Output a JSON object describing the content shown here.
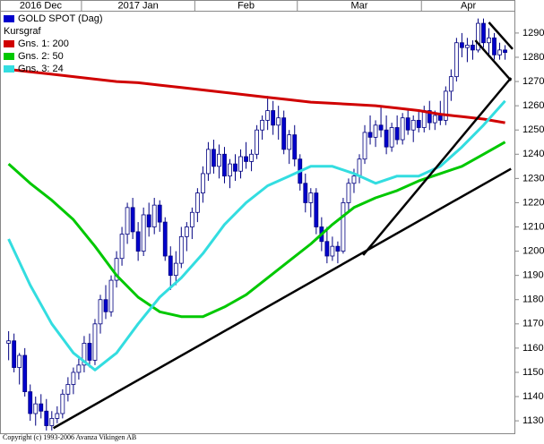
{
  "chart_data": {
    "type": "candlestick",
    "price_name": "GOLD SPOT (Dag)",
    "price_kind": "Kursgraf",
    "footer": "Copyright (c) 1993-2006 Avanza Vikingen AB",
    "up_color": "#ffffff",
    "down_color": "#0000cc",
    "edge_color": "#000080",
    "xlim": [
      -1.6,
      93.9
    ],
    "xticks": [
      {
        "value": 0,
        "label": "2016 Dec"
      },
      {
        "value": 14,
        "label": "2017 Jan"
      },
      {
        "value": 35,
        "label": "Feb"
      },
      {
        "value": 54,
        "label": "Mar"
      },
      {
        "value": 77,
        "label": "Apr"
      }
    ],
    "ylim": [
      1124.5,
      1299.2
    ],
    "yticks": [
      1130,
      1140,
      1150,
      1160,
      1170,
      1180,
      1190,
      1200,
      1210,
      1220,
      1230,
      1240,
      1250,
      1260,
      1270,
      1280,
      1290
    ],
    "candles": [
      [
        1162,
        1167,
        1155,
        1163
      ],
      [
        1163,
        1166,
        1150,
        1152
      ],
      [
        1152,
        1158,
        1145,
        1157
      ],
      [
        1157,
        1160,
        1140,
        1142
      ],
      [
        1142,
        1145,
        1130,
        1133
      ],
      [
        1133,
        1140,
        1128,
        1137
      ],
      [
        1137,
        1141,
        1131,
        1134
      ],
      [
        1134,
        1139,
        1126,
        1128
      ],
      [
        1128,
        1134,
        1126,
        1131
      ],
      [
        1131,
        1136,
        1129,
        1133
      ],
      [
        1133,
        1143,
        1131,
        1141
      ],
      [
        1141,
        1148,
        1138,
        1145
      ],
      [
        1145,
        1152,
        1141,
        1150
      ],
      [
        1150,
        1156,
        1147,
        1153
      ],
      [
        1153,
        1165,
        1150,
        1162
      ],
      [
        1162,
        1166,
        1152,
        1155
      ],
      [
        1155,
        1172,
        1153,
        1170
      ],
      [
        1170,
        1182,
        1166,
        1180
      ],
      [
        1180,
        1186,
        1172,
        1175
      ],
      [
        1175,
        1190,
        1173,
        1188
      ],
      [
        1188,
        1200,
        1185,
        1197
      ],
      [
        1197,
        1210,
        1194,
        1207
      ],
      [
        1207,
        1220,
        1203,
        1218
      ],
      [
        1218,
        1222,
        1205,
        1208
      ],
      [
        1208,
        1212,
        1196,
        1200
      ],
      [
        1200,
        1218,
        1198,
        1215
      ],
      [
        1215,
        1220,
        1206,
        1210
      ],
      [
        1210,
        1222,
        1207,
        1219
      ],
      [
        1219,
        1221,
        1208,
        1212
      ],
      [
        1212,
        1214,
        1196,
        1198
      ],
      [
        1198,
        1202,
        1184,
        1190
      ],
      [
        1190,
        1200,
        1186,
        1195
      ],
      [
        1195,
        1210,
        1193,
        1206
      ],
      [
        1206,
        1212,
        1200,
        1210
      ],
      [
        1210,
        1218,
        1205,
        1216
      ],
      [
        1216,
        1226,
        1212,
        1224
      ],
      [
        1224,
        1235,
        1220,
        1232
      ],
      [
        1232,
        1245,
        1229,
        1242
      ],
      [
        1242,
        1246,
        1232,
        1235
      ],
      [
        1235,
        1244,
        1230,
        1240
      ],
      [
        1240,
        1243,
        1228,
        1231
      ],
      [
        1231,
        1238,
        1226,
        1236
      ],
      [
        1236,
        1240,
        1229,
        1233
      ],
      [
        1233,
        1242,
        1230,
        1239
      ],
      [
        1239,
        1245,
        1234,
        1237
      ],
      [
        1237,
        1242,
        1233,
        1240
      ],
      [
        1240,
        1252,
        1238,
        1250
      ],
      [
        1250,
        1256,
        1246,
        1254
      ],
      [
        1254,
        1264,
        1250,
        1258
      ],
      [
        1258,
        1262,
        1248,
        1252
      ],
      [
        1252,
        1260,
        1246,
        1255
      ],
      [
        1255,
        1258,
        1240,
        1242
      ],
      [
        1242,
        1250,
        1236,
        1248
      ],
      [
        1248,
        1252,
        1235,
        1238
      ],
      [
        1238,
        1240,
        1225,
        1228
      ],
      [
        1228,
        1232,
        1216,
        1220
      ],
      [
        1220,
        1226,
        1214,
        1224
      ],
      [
        1224,
        1226,
        1207,
        1210
      ],
      [
        1210,
        1214,
        1200,
        1204
      ],
      [
        1204,
        1210,
        1195,
        1198
      ],
      [
        1198,
        1206,
        1196,
        1202
      ],
      [
        1202,
        1204,
        1195,
        1200
      ],
      [
        1200,
        1222,
        1199,
        1220
      ],
      [
        1220,
        1230,
        1216,
        1228
      ],
      [
        1228,
        1234,
        1224,
        1231
      ],
      [
        1231,
        1240,
        1228,
        1238
      ],
      [
        1238,
        1252,
        1236,
        1249
      ],
      [
        1249,
        1256,
        1244,
        1247
      ],
      [
        1247,
        1254,
        1243,
        1252
      ],
      [
        1252,
        1260,
        1247,
        1250
      ],
      [
        1250,
        1256,
        1240,
        1243
      ],
      [
        1243,
        1253,
        1241,
        1251
      ],
      [
        1251,
        1256,
        1244,
        1246
      ],
      [
        1246,
        1257,
        1244,
        1255
      ],
      [
        1255,
        1258,
        1248,
        1250
      ],
      [
        1250,
        1256,
        1245,
        1254
      ],
      [
        1254,
        1258,
        1249,
        1251
      ],
      [
        1251,
        1260,
        1249,
        1258
      ],
      [
        1258,
        1262,
        1250,
        1253
      ],
      [
        1253,
        1258,
        1250,
        1256
      ],
      [
        1256,
        1262,
        1252,
        1254
      ],
      [
        1254,
        1268,
        1252,
        1266
      ],
      [
        1266,
        1275,
        1262,
        1272
      ],
      [
        1272,
        1288,
        1270,
        1286
      ],
      [
        1286,
        1290,
        1280,
        1284
      ],
      [
        1284,
        1288,
        1278,
        1285
      ],
      [
        1285,
        1287,
        1279,
        1283
      ],
      [
        1283,
        1296,
        1282,
        1294
      ],
      [
        1294,
        1296,
        1284,
        1286
      ],
      [
        1286,
        1292,
        1280,
        1288
      ],
      [
        1288,
        1290,
        1279,
        1281
      ],
      [
        1281,
        1286,
        1279,
        1283
      ],
      [
        1283,
        1285,
        1279,
        1282
      ]
    ],
    "series": [
      {
        "name": "Gns. 1: 200",
        "color": "#d00000",
        "x": [
          0,
          4,
          8,
          12,
          16,
          20,
          24,
          28,
          32,
          36,
          40,
          44,
          48,
          52,
          56,
          60,
          64,
          68,
          72,
          76,
          80,
          84,
          88,
          92
        ],
        "values": [
          1275,
          1274,
          1273,
          1272,
          1271,
          1270,
          1269.5,
          1268.5,
          1267.5,
          1266.5,
          1265.5,
          1264.5,
          1263.5,
          1262.5,
          1261.5,
          1261,
          1260.5,
          1260,
          1259,
          1258,
          1256.5,
          1255.5,
          1254.5,
          1253
        ]
      },
      {
        "name": "Gns. 2: 50",
        "color": "#00c800",
        "x": [
          0,
          4,
          8,
          12,
          16,
          20,
          24,
          28,
          32,
          36,
          40,
          44,
          48,
          52,
          56,
          60,
          64,
          68,
          72,
          76,
          80,
          84,
          88,
          92
        ],
        "values": [
          1236,
          1228,
          1221,
          1213,
          1202,
          1190,
          1181,
          1175,
          1173,
          1173,
          1177,
          1182,
          1189,
          1196,
          1203,
          1211,
          1218,
          1222,
          1225,
          1229,
          1232,
          1235,
          1240,
          1245
        ]
      },
      {
        "name": "Gns. 3: 24",
        "color": "#33dde0",
        "x": [
          0,
          4,
          8,
          12,
          16,
          20,
          24,
          28,
          32,
          36,
          40,
          44,
          48,
          52,
          56,
          60,
          64,
          68,
          72,
          76,
          80,
          84,
          88,
          92
        ],
        "values": [
          1205,
          1186,
          1170,
          1158,
          1151,
          1158,
          1170,
          1181,
          1189,
          1199,
          1211,
          1220,
          1227,
          1231,
          1235,
          1235,
          1232,
          1228,
          1231,
          1231,
          1235,
          1243,
          1252,
          1262
        ]
      }
    ],
    "trendlines": [
      {
        "x": [
          8.3,
          93.1
        ],
        "y": [
          1127,
          1234
        ]
      },
      {
        "x": [
          65.7,
          93.1
        ],
        "y": [
          1198.4,
          1271.5
        ]
      },
      {
        "x": [
          86.5,
          93.1
        ],
        "y": [
          1287,
          1270.4
        ]
      },
      {
        "x": [
          89,
          93.4
        ],
        "y": [
          1294.4,
          1283.4
        ]
      }
    ],
    "trend_color": "#000000"
  }
}
